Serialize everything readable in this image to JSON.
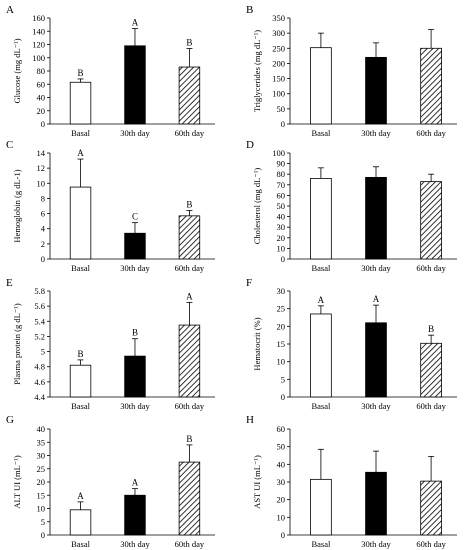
{
  "colors": {
    "basal": "#ffffff",
    "day30": "#000000",
    "day60": "hatch",
    "stroke": "#000000"
  },
  "panels": [
    {
      "letter": "A",
      "chart_data": {
        "type": "bar",
        "categories": [
          "Basal",
          "30th day",
          "60th day"
        ],
        "values": [
          63,
          118,
          86
        ],
        "errors": [
          5,
          26,
          28
        ],
        "labels": [
          "B",
          "A",
          "B"
        ],
        "ylabel": "Glucose (mg dL⁻¹)",
        "ylim": [
          0,
          160
        ],
        "yticks": [
          0,
          20,
          40,
          60,
          80,
          100,
          120,
          140,
          160
        ],
        "tick_labels": [
          "0",
          "20",
          "40",
          "60",
          "80",
          "100",
          "120",
          "140",
          "160"
        ]
      }
    },
    {
      "letter": "B",
      "chart_data": {
        "type": "bar",
        "categories": [
          "Basal",
          "30th day",
          "60th day"
        ],
        "values": [
          252,
          220,
          250
        ],
        "errors": [
          48,
          48,
          62
        ],
        "labels": [
          "",
          "",
          ""
        ],
        "ylabel": "Triglycerides (mg dL⁻¹)",
        "ylim": [
          0,
          350
        ],
        "yticks": [
          0,
          50,
          100,
          150,
          200,
          250,
          300,
          350
        ],
        "tick_labels": [
          "0",
          "50",
          "100",
          "150",
          "200",
          "250",
          "300",
          "350"
        ]
      }
    },
    {
      "letter": "C",
      "chart_data": {
        "type": "bar",
        "categories": [
          "Basal",
          "30th day",
          "60th day"
        ],
        "values": [
          9.5,
          3.4,
          5.7
        ],
        "errors": [
          3.7,
          1.4,
          0.7
        ],
        "labels": [
          "A",
          "C",
          "B"
        ],
        "ylabel": "Hemoglobin (g dL-1)",
        "ylim": [
          0,
          14
        ],
        "yticks": [
          0,
          2,
          4,
          6,
          8,
          10,
          12,
          14
        ],
        "tick_labels": [
          "0",
          "2",
          "4",
          "6",
          "8",
          "10",
          "12",
          "14"
        ]
      }
    },
    {
      "letter": "D",
      "chart_data": {
        "type": "bar",
        "categories": [
          "Basal",
          "30th day",
          "60th day"
        ],
        "values": [
          76,
          77,
          73
        ],
        "errors": [
          10,
          10,
          7
        ],
        "labels": [
          "",
          "",
          ""
        ],
        "ylabel": "Cholesterol (mg dL⁻¹)",
        "ylim": [
          0,
          100
        ],
        "yticks": [
          0,
          10,
          20,
          30,
          40,
          50,
          60,
          70,
          80,
          90,
          100
        ],
        "tick_labels": [
          "0",
          "10",
          "20",
          "30",
          "40",
          "50",
          "60",
          "70",
          "80",
          "90",
          "100"
        ]
      }
    },
    {
      "letter": "E",
      "chart_data": {
        "type": "bar",
        "categories": [
          "Basal",
          "30th day",
          "60th day"
        ],
        "values": [
          4.82,
          4.94,
          5.35
        ],
        "errors": [
          0.07,
          0.23,
          0.3
        ],
        "labels": [
          "B",
          "B",
          "A"
        ],
        "ylabel": "Plasma protein (g dL⁻¹)",
        "ylim": [
          4.4,
          5.8
        ],
        "yticks": [
          4.4,
          4.6,
          4.8,
          5,
          5.2,
          5.4,
          5.6,
          5.8
        ],
        "tick_labels": [
          "4.4",
          "4.6",
          "4.8",
          "5",
          "5.2",
          "5.4",
          "5.6",
          "5.8"
        ]
      }
    },
    {
      "letter": "F",
      "chart_data": {
        "type": "bar",
        "categories": [
          "Basal",
          "30th day",
          "60th day"
        ],
        "values": [
          23.5,
          21,
          15.2
        ],
        "errors": [
          2.3,
          5,
          2.3
        ],
        "labels": [
          "A",
          "A",
          "B"
        ],
        "ylabel": "Hematocrit (%)",
        "ylim": [
          0,
          30
        ],
        "yticks": [
          0,
          5,
          10,
          15,
          20,
          25,
          30
        ],
        "tick_labels": [
          "0",
          "5",
          "10",
          "15",
          "20",
          "25",
          "30"
        ]
      }
    },
    {
      "letter": "G",
      "chart_data": {
        "type": "bar",
        "categories": [
          "Basal",
          "30th day",
          "60th day"
        ],
        "values": [
          9.5,
          15,
          27.5
        ],
        "errors": [
          3,
          2.5,
          6.5
        ],
        "labels": [
          "A",
          "A",
          "B"
        ],
        "ylabel": "ALT UI (mL⁻¹)",
        "ylim": [
          0,
          40
        ],
        "yticks": [
          0,
          5,
          10,
          15,
          20,
          25,
          30,
          35,
          40
        ],
        "tick_labels": [
          "0",
          "5",
          "10",
          "15",
          "20",
          "25",
          "30",
          "35",
          "40"
        ]
      }
    },
    {
      "letter": "H",
      "chart_data": {
        "type": "bar",
        "categories": [
          "Basal",
          "30th day",
          "60th day"
        ],
        "values": [
          31.5,
          35.5,
          30.5
        ],
        "errors": [
          17,
          12,
          14
        ],
        "labels": [
          "",
          "",
          ""
        ],
        "ylabel": "AST UI (mL⁻¹)",
        "ylim": [
          0,
          60
        ],
        "yticks": [
          0,
          10,
          20,
          30,
          40,
          50,
          60
        ],
        "tick_labels": [
          "0",
          "10",
          "20",
          "30",
          "40",
          "50",
          "60"
        ]
      }
    }
  ]
}
